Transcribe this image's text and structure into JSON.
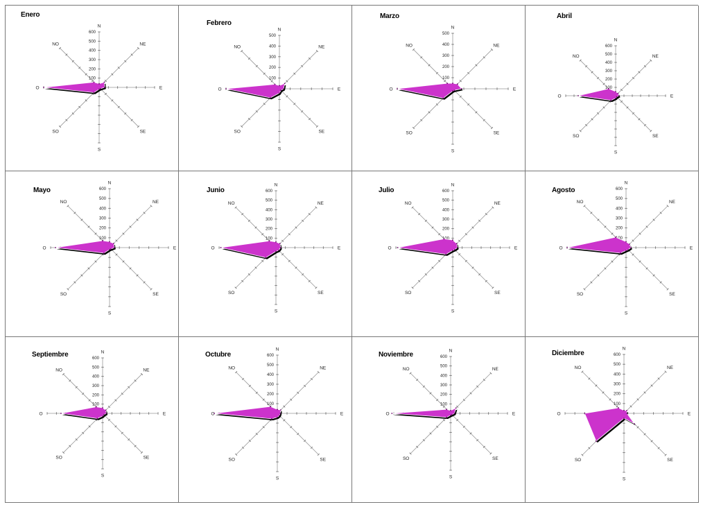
{
  "chart_data": [
    {
      "type": "radar",
      "title": "Enero",
      "directions": [
        "N",
        "NE",
        "E",
        "SE",
        "S",
        "SO",
        "O",
        "NO"
      ],
      "tick_labels": [
        "100",
        "200",
        "300",
        "400",
        "500",
        "600"
      ],
      "rlim": [
        0,
        600
      ],
      "values": [
        40,
        80,
        60,
        20,
        20,
        80,
        600,
        80
      ],
      "colors": {
        "fill": "#cc33cc",
        "shadow": "#000000"
      }
    },
    {
      "type": "radar",
      "title": "Febrero",
      "directions": [
        "N",
        "NE",
        "E",
        "SE",
        "S",
        "SO",
        "O",
        "NO"
      ],
      "tick_labels": [
        "100",
        "200",
        "300",
        "400",
        "500"
      ],
      "rlim": [
        0,
        500
      ],
      "values": [
        30,
        70,
        40,
        20,
        40,
        120,
        500,
        60
      ],
      "colors": {
        "fill": "#cc33cc",
        "shadow": "#000000"
      }
    },
    {
      "type": "radar",
      "title": "Marzo",
      "directions": [
        "N",
        "NE",
        "E",
        "SE",
        "S",
        "SO",
        "O",
        "NO"
      ],
      "tick_labels": [
        "100",
        "200",
        "300",
        "400",
        "500"
      ],
      "rlim": [
        0,
        500
      ],
      "values": [
        50,
        60,
        80,
        20,
        20,
        120,
        500,
        70
      ],
      "colors": {
        "fill": "#cc33cc",
        "shadow": "#000000"
      }
    },
    {
      "type": "radar",
      "title": "Abril",
      "directions": [
        "N",
        "NE",
        "E",
        "SE",
        "S",
        "SO",
        "O",
        "NO"
      ],
      "tick_labels": [
        "100",
        "200",
        "300",
        "400",
        "500",
        "600"
      ],
      "rlim": [
        0,
        600
      ],
      "values": [
        50,
        40,
        40,
        20,
        30,
        80,
        450,
        120
      ],
      "colors": {
        "fill": "#cc33cc",
        "shadow": "#000000"
      }
    },
    {
      "type": "radar",
      "title": "Mayo",
      "directions": [
        "N",
        "NE",
        "E",
        "SE",
        "S",
        "SO",
        "O",
        "NO"
      ],
      "tick_labels": [
        "100",
        "200",
        "300",
        "400",
        "500",
        "600"
      ],
      "rlim": [
        0,
        600
      ],
      "values": [
        60,
        60,
        50,
        20,
        20,
        80,
        550,
        100
      ],
      "colors": {
        "fill": "#cc33cc",
        "shadow": "#000000"
      }
    },
    {
      "type": "radar",
      "title": "Junio",
      "directions": [
        "N",
        "NE",
        "E",
        "SE",
        "S",
        "SO",
        "O",
        "NO"
      ],
      "tick_labels": [
        "100",
        "200",
        "300",
        "400",
        "500",
        "600"
      ],
      "rlim": [
        0,
        600
      ],
      "values": [
        60,
        60,
        50,
        40,
        40,
        150,
        580,
        100
      ],
      "colors": {
        "fill": "#cc33cc",
        "shadow": "#000000"
      }
    },
    {
      "type": "radar",
      "title": "Julio",
      "directions": [
        "N",
        "NE",
        "E",
        "SE",
        "S",
        "SO",
        "O",
        "NO"
      ],
      "tick_labels": [
        "100",
        "200",
        "300",
        "400",
        "500",
        "600"
      ],
      "rlim": [
        0,
        600
      ],
      "values": [
        80,
        60,
        50,
        30,
        30,
        100,
        580,
        130
      ],
      "colors": {
        "fill": "#cc33cc",
        "shadow": "#000000"
      }
    },
    {
      "type": "radar",
      "title": "Agosto",
      "directions": [
        "N",
        "NE",
        "E",
        "SE",
        "S",
        "SO",
        "O",
        "NO"
      ],
      "tick_labels": [
        "100",
        "200",
        "300",
        "400",
        "500",
        "600"
      ],
      "rlim": [
        0,
        600
      ],
      "values": [
        60,
        50,
        50,
        30,
        30,
        80,
        600,
        150
      ],
      "colors": {
        "fill": "#cc33cc",
        "shadow": "#000000"
      }
    },
    {
      "type": "radar",
      "title": "Septiembre",
      "directions": [
        "N",
        "NE",
        "E",
        "SE",
        "S",
        "SO",
        "O",
        "NO"
      ],
      "tick_labels": [
        "100",
        "200",
        "300",
        "400",
        "500",
        "600"
      ],
      "rlim": [
        0,
        600
      ],
      "values": [
        60,
        50,
        40,
        20,
        30,
        80,
        450,
        100
      ],
      "colors": {
        "fill": "#cc33cc",
        "shadow": "#000000"
      }
    },
    {
      "type": "radar",
      "title": "Octubre",
      "directions": [
        "N",
        "NE",
        "E",
        "SE",
        "S",
        "SO",
        "O",
        "NO"
      ],
      "tick_labels": [
        "100",
        "200",
        "300",
        "400",
        "500",
        "600"
      ],
      "rlim": [
        0,
        600
      ],
      "values": [
        40,
        50,
        30,
        30,
        40,
        80,
        650,
        100
      ],
      "colors": {
        "fill": "#cc33cc",
        "shadow": "#000000"
      }
    },
    {
      "type": "radar",
      "title": "Noviembre",
      "directions": [
        "N",
        "NE",
        "E",
        "SE",
        "S",
        "SO",
        "O",
        "NO"
      ],
      "tick_labels": [
        "100",
        "200",
        "300",
        "400",
        "500",
        "600"
      ],
      "rlim": [
        0,
        600
      ],
      "values": [
        30,
        80,
        40,
        20,
        20,
        60,
        620,
        60
      ],
      "colors": {
        "fill": "#cc33cc",
        "shadow": "#000000"
      }
    },
    {
      "type": "radar",
      "title": "Diciembre",
      "directions": [
        "N",
        "NE",
        "E",
        "SE",
        "S",
        "SO",
        "O",
        "NO"
      ],
      "tick_labels": [
        "100",
        "200",
        "300",
        "400",
        "500",
        "600"
      ],
      "rlim": [
        0,
        600
      ],
      "values": [
        30,
        40,
        30,
        150,
        50,
        400,
        400,
        80
      ],
      "colors": {
        "fill": "#cc33cc",
        "shadow": "#000000"
      }
    }
  ]
}
